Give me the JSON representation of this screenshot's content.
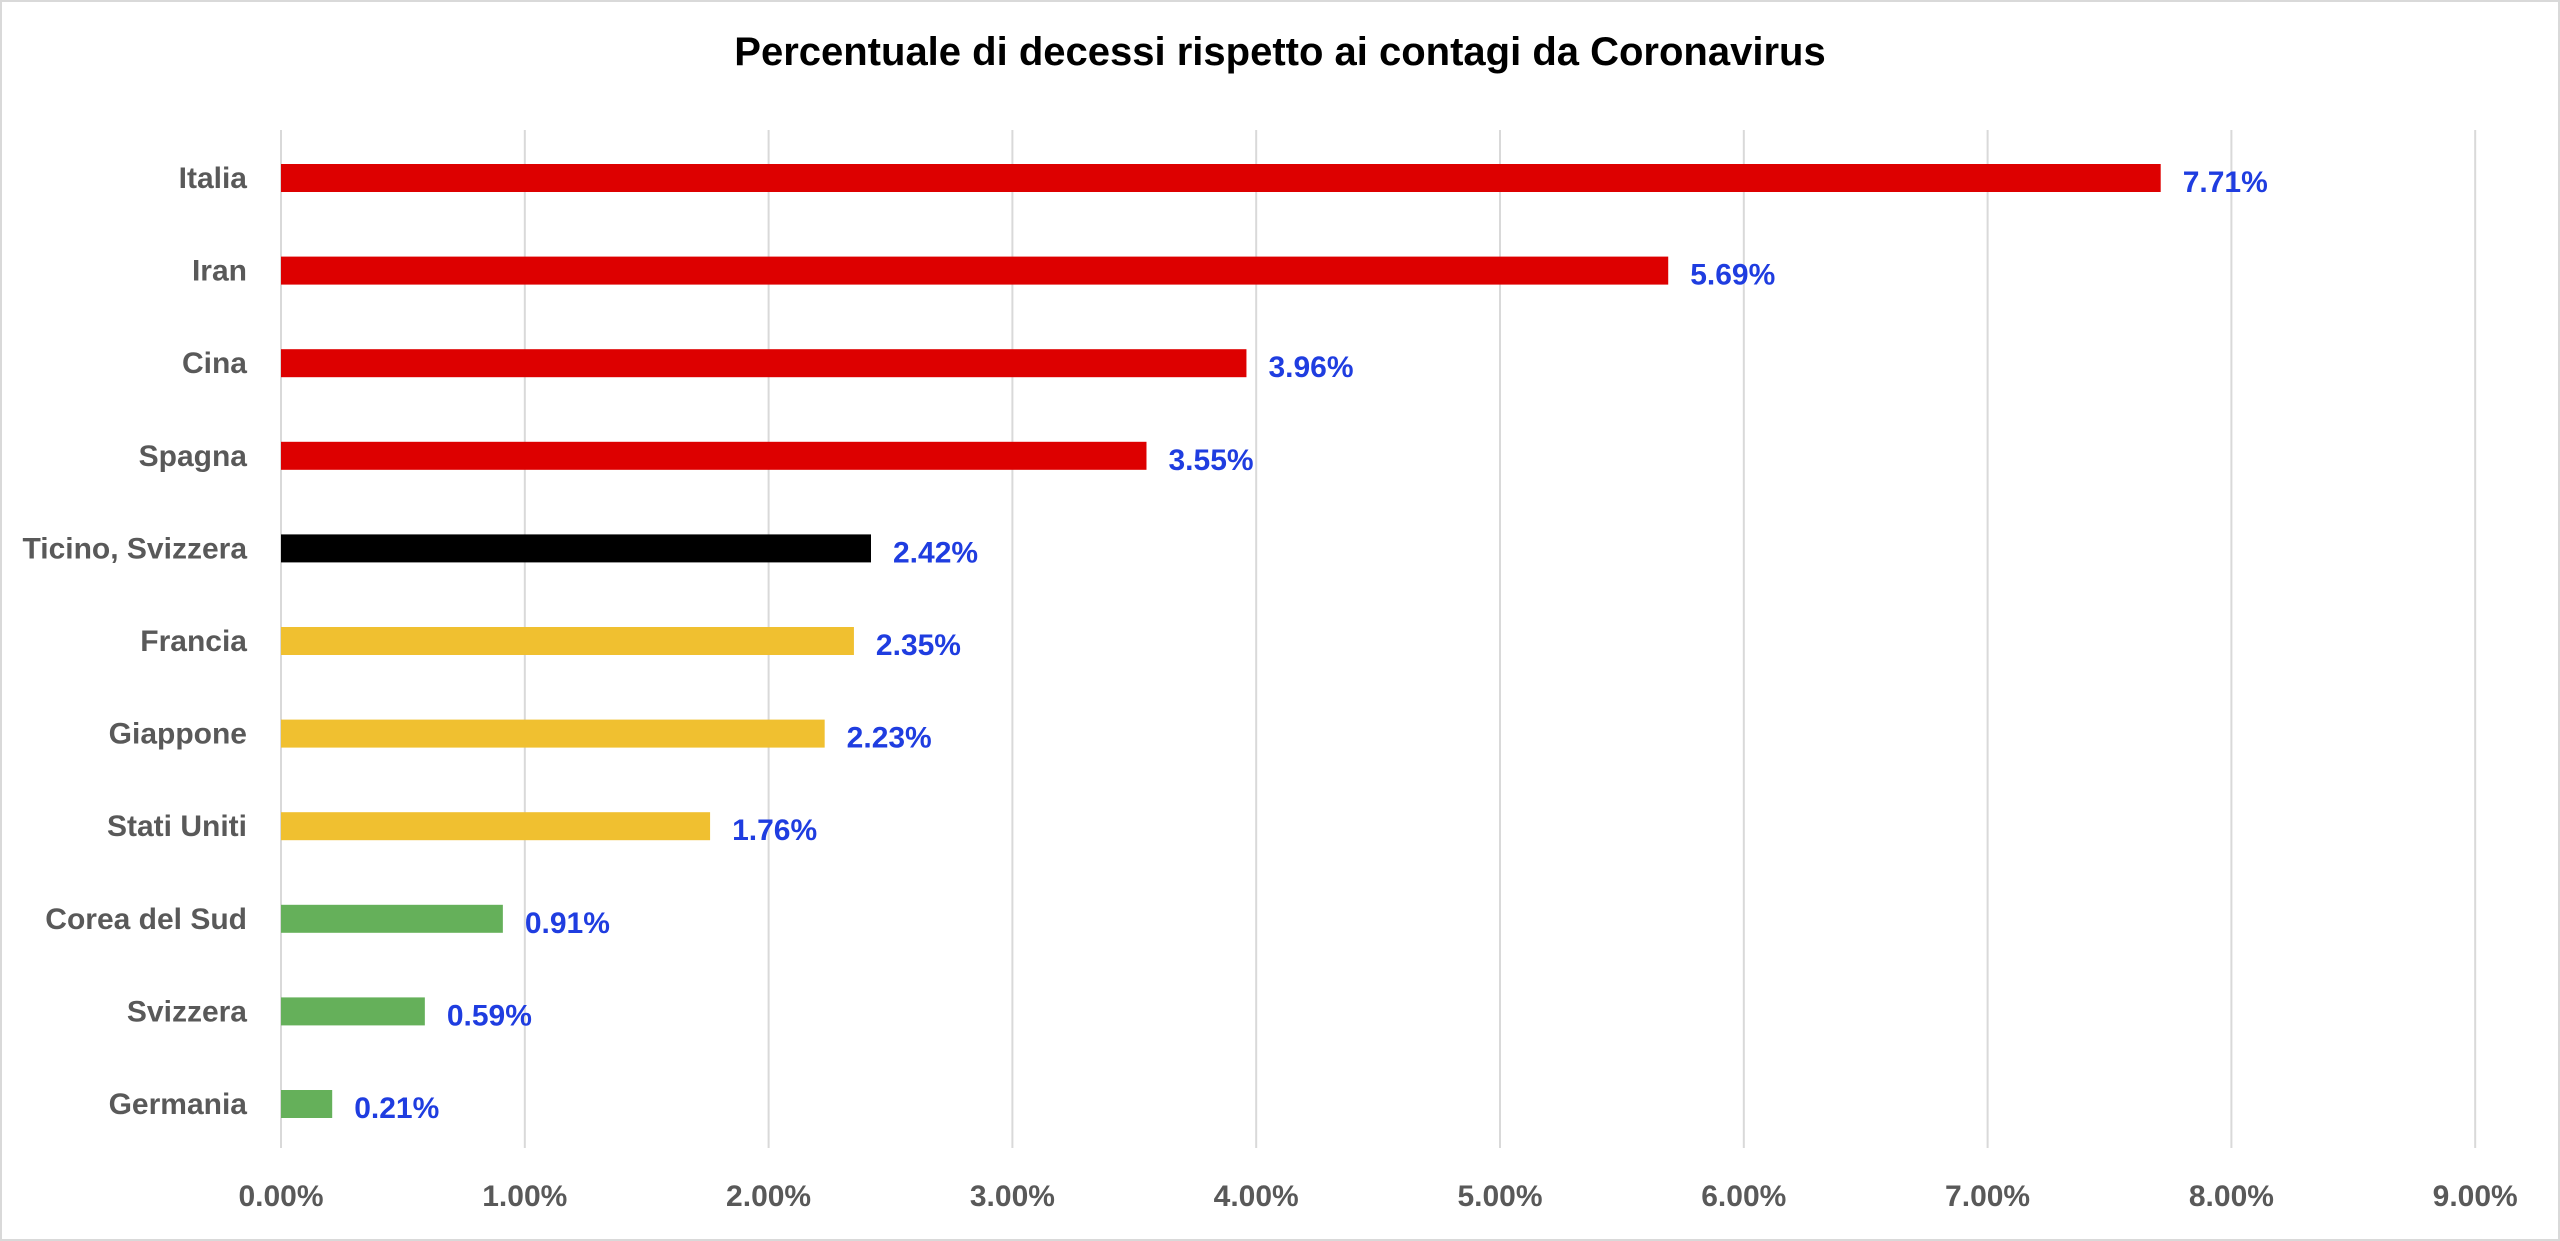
{
  "chart_data": {
    "type": "bar",
    "orientation": "horizontal",
    "title": "Percentuale di decessi rispetto ai contagi da Coronavirus",
    "xlabel": "",
    "ylabel": "",
    "xlim": [
      0,
      9
    ],
    "grid": true,
    "legend": "none",
    "ticks": [
      "0.00%",
      "1.00%",
      "2.00%",
      "3.00%",
      "4.00%",
      "5.00%",
      "6.00%",
      "7.00%",
      "8.00%",
      "9.00%"
    ],
    "tick_values": [
      0,
      1,
      2,
      3,
      4,
      5,
      6,
      7,
      8,
      9
    ],
    "categories": [
      "Italia",
      "Iran",
      "Cina",
      "Spagna",
      "Ticino, Svizzera",
      "Francia",
      "Giappone",
      "Stati Uniti",
      "Corea del Sud",
      "Svizzera",
      "Germania"
    ],
    "values": [
      7.71,
      5.69,
      3.96,
      3.55,
      2.42,
      2.35,
      2.23,
      1.76,
      0.91,
      0.59,
      0.21
    ],
    "value_labels": [
      "7.71%",
      "5.69%",
      "3.96%",
      "3.55%",
      "2.42%",
      "2.35%",
      "2.23%",
      "1.76%",
      "0.91%",
      "0.59%",
      "0.21%"
    ],
    "bar_colors": [
      "#dd0000",
      "#dd0000",
      "#dd0000",
      "#dd0000",
      "#000000",
      "#f0c030",
      "#f0c030",
      "#f0c030",
      "#65b05a",
      "#65b05a",
      "#65b05a"
    ],
    "value_label_color": "#1f3de0",
    "grid_color": "#d9d9d9"
  }
}
